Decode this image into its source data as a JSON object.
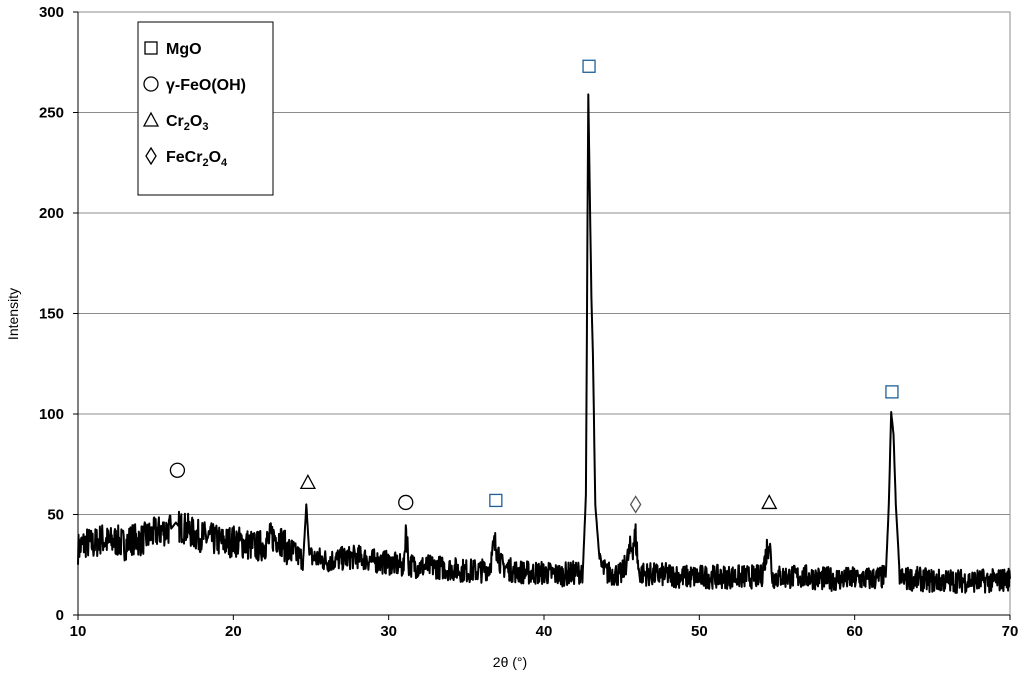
{
  "chart_data": {
    "type": "line",
    "title": "",
    "xlabel": "2θ (°)",
    "ylabel": "Intensity",
    "xlim": [
      10,
      70
    ],
    "ylim": [
      0,
      300
    ],
    "x_ticks": [
      10,
      20,
      30,
      40,
      50,
      60,
      70
    ],
    "y_ticks": [
      0,
      50,
      100,
      150,
      200,
      250,
      300
    ],
    "grid": "horizontal",
    "legend_position": "top-left",
    "series": [
      {
        "color": "#000000",
        "points": [
          [
            10,
            33
          ],
          [
            10.5,
            36
          ],
          [
            11,
            35
          ],
          [
            11.5,
            38
          ],
          [
            12,
            36
          ],
          [
            12.5,
            37
          ],
          [
            13,
            35
          ],
          [
            13.5,
            38
          ],
          [
            14,
            37
          ],
          [
            14.5,
            39
          ],
          [
            15,
            41
          ],
          [
            15.5,
            42
          ],
          [
            16,
            43
          ],
          [
            16.3,
            46
          ],
          [
            16.5,
            44
          ],
          [
            17,
            43
          ],
          [
            17.5,
            40
          ],
          [
            18,
            39
          ],
          [
            18.5,
            38
          ],
          [
            19,
            37
          ],
          [
            19.5,
            36
          ],
          [
            20,
            37
          ],
          [
            20.5,
            36
          ],
          [
            21,
            35
          ],
          [
            21.5,
            34
          ],
          [
            22,
            35
          ],
          [
            22.5,
            39
          ],
          [
            23,
            38
          ],
          [
            23.5,
            32
          ],
          [
            24,
            30
          ],
          [
            24.5,
            28
          ],
          [
            24.7,
            55
          ],
          [
            24.9,
            29
          ],
          [
            25.5,
            28
          ],
          [
            26,
            27
          ],
          [
            27,
            28
          ],
          [
            28,
            29
          ],
          [
            29,
            27
          ],
          [
            30,
            26
          ],
          [
            31,
            24
          ],
          [
            31.1,
            45
          ],
          [
            31.3,
            25
          ],
          [
            32,
            24
          ],
          [
            33,
            24
          ],
          [
            34,
            23
          ],
          [
            35,
            22
          ],
          [
            36,
            22
          ],
          [
            36.5,
            24
          ],
          [
            36.8,
            34
          ],
          [
            37,
            35
          ],
          [
            37.2,
            25
          ],
          [
            38,
            22
          ],
          [
            39,
            21
          ],
          [
            40,
            21
          ],
          [
            41,
            20
          ],
          [
            42,
            21
          ],
          [
            42.5,
            22
          ],
          [
            42.7,
            60
          ],
          [
            42.85,
            259
          ],
          [
            42.95,
            210
          ],
          [
            43.05,
            158
          ],
          [
            43.15,
            130
          ],
          [
            43.3,
            55
          ],
          [
            43.6,
            25
          ],
          [
            44,
            21
          ],
          [
            45,
            20
          ],
          [
            45.9,
            39
          ],
          [
            46.1,
            21
          ],
          [
            47,
            20
          ],
          [
            48,
            20
          ],
          [
            49,
            19
          ],
          [
            50,
            19
          ],
          [
            51,
            19
          ],
          [
            52,
            19
          ],
          [
            53,
            19
          ],
          [
            54,
            19
          ],
          [
            54.5,
            38
          ],
          [
            54.7,
            19
          ],
          [
            55,
            19
          ],
          [
            56,
            19
          ],
          [
            57,
            19
          ],
          [
            58,
            18
          ],
          [
            59,
            18
          ],
          [
            60,
            18
          ],
          [
            61,
            18
          ],
          [
            62,
            19
          ],
          [
            62.2,
            55
          ],
          [
            62.35,
            101
          ],
          [
            62.5,
            90
          ],
          [
            62.65,
            55
          ],
          [
            62.9,
            20
          ],
          [
            63,
            18
          ],
          [
            64,
            18
          ],
          [
            65,
            17
          ],
          [
            66,
            17
          ],
          [
            67,
            17
          ],
          [
            68,
            17
          ],
          [
            69,
            17
          ],
          [
            70,
            18
          ]
        ]
      }
    ],
    "legend": [
      {
        "symbol": "square",
        "main": "MgO"
      },
      {
        "symbol": "circle",
        "main": "γ-FeO(OH)"
      },
      {
        "symbol": "triangle",
        "main": "Cr",
        "sub1": "2",
        "mid": "O",
        "sub2": "3"
      },
      {
        "symbol": "diamond",
        "main": "FeCr",
        "sub1": "2",
        "mid": "O",
        "sub2": "4"
      }
    ],
    "peak_markers": [
      {
        "symbol": "circle",
        "x": 16.4,
        "y": 72,
        "color": "#000000"
      },
      {
        "symbol": "triangle",
        "x": 24.8,
        "y": 66,
        "color": "#000000"
      },
      {
        "symbol": "circle",
        "x": 31.1,
        "y": 56,
        "color": "#000000"
      },
      {
        "symbol": "square",
        "x": 36.9,
        "y": 57,
        "color": "#1f5f99"
      },
      {
        "symbol": "square",
        "x": 42.9,
        "y": 273,
        "color": "#1f5f99"
      },
      {
        "symbol": "diamond",
        "x": 45.9,
        "y": 55,
        "color": "#555555"
      },
      {
        "symbol": "triangle",
        "x": 54.5,
        "y": 56,
        "color": "#000000"
      },
      {
        "symbol": "square",
        "x": 62.4,
        "y": 111,
        "color": "#1f5f99"
      }
    ]
  }
}
